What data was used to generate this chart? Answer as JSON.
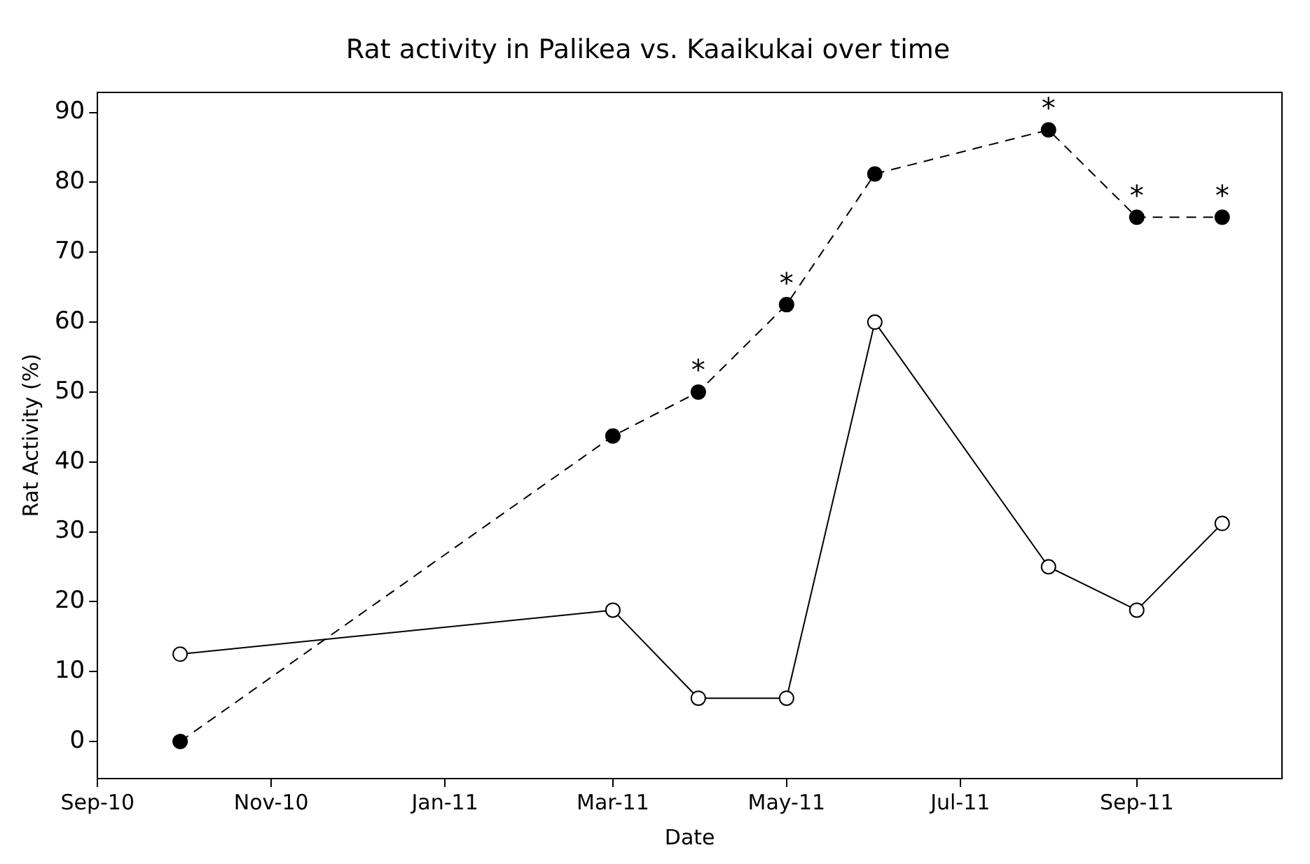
{
  "chart_data": {
    "type": "line",
    "title": "Rat activity in Palikea vs. Kaaikukai over time",
    "xlabel": "Date",
    "ylabel": "Rat Activity (%)",
    "x": [
      "2010-09-30",
      "2011-03-01",
      "2011-03-31",
      "2011-05-01",
      "2011-06-01",
      "2011-08-01",
      "2011-09-01",
      "2011-10-01"
    ],
    "series": [
      {
        "color": "#000000",
        "line_style": "dashed",
        "values": [
          0,
          43.7,
          50,
          62.5,
          81.2,
          87.5,
          75,
          75
        ]
      },
      {
        "color": "#000000",
        "line_style": "solid",
        "values": [
          12.5,
          18.8,
          6.2,
          6.2,
          60,
          25,
          18.8,
          31.2
        ]
      }
    ],
    "xlim": [
      "2010-09-01",
      "2011-10-22"
    ],
    "xticks": [
      {
        "value": "2010-09-01",
        "label": "Sep-10"
      },
      {
        "value": "2010-11-01",
        "label": "Nov-10"
      },
      {
        "value": "2011-01-01",
        "label": "Jan-11"
      },
      {
        "value": "2011-03-01",
        "label": "Mar-11"
      },
      {
        "value": "2011-05-01",
        "label": "May-11"
      },
      {
        "value": "2011-07-01",
        "label": "Jul-11"
      },
      {
        "value": "2011-09-01",
        "label": "Sep-11"
      }
    ],
    "ylim": [
      -5.3,
      92.9
    ],
    "yticks": [
      0,
      10,
      20,
      30,
      40,
      50,
      60,
      70,
      80,
      90
    ],
    "marker": "circle",
    "grid": false,
    "legend": false,
    "annotations": [
      {
        "text": "*",
        "x": "2011-03-31",
        "y": 50
      },
      {
        "text": "*",
        "x": "2011-05-01",
        "y": 62.5
      },
      {
        "text": "*",
        "x": "2011-08-01",
        "y": 87.5
      },
      {
        "text": "*",
        "x": "2011-09-01",
        "y": 75
      },
      {
        "text": "*",
        "x": "2011-10-01",
        "y": 75
      }
    ]
  }
}
